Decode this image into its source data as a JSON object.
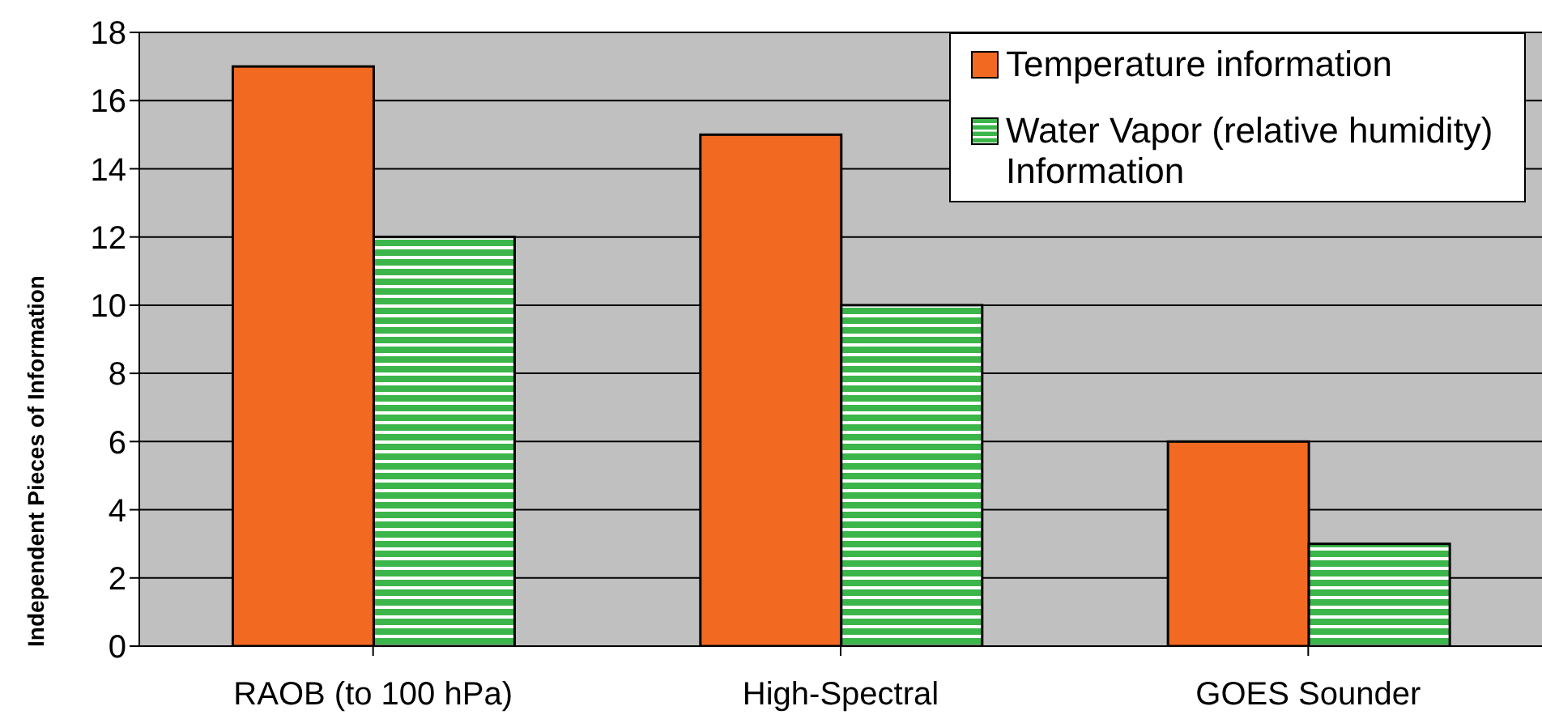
{
  "chart_data": {
    "type": "bar",
    "ylabel": "Independent Pieces of Information",
    "categories": [
      "RAOB (to 100 hPa)",
      "High-Spectral",
      "GOES Sounder"
    ],
    "series": [
      {
        "name": "Temperature information",
        "color": "#f26a21",
        "values": [
          17,
          15,
          6
        ]
      },
      {
        "name": "Water Vapor (relative humidity) Information",
        "color": "#3cb54a",
        "values": [
          12,
          10,
          3
        ]
      }
    ],
    "ylim": [
      0,
      18
    ],
    "yticks": [
      0,
      2,
      4,
      6,
      8,
      10,
      12,
      14,
      16,
      18
    ],
    "grid": "y",
    "legend": "top right"
  }
}
